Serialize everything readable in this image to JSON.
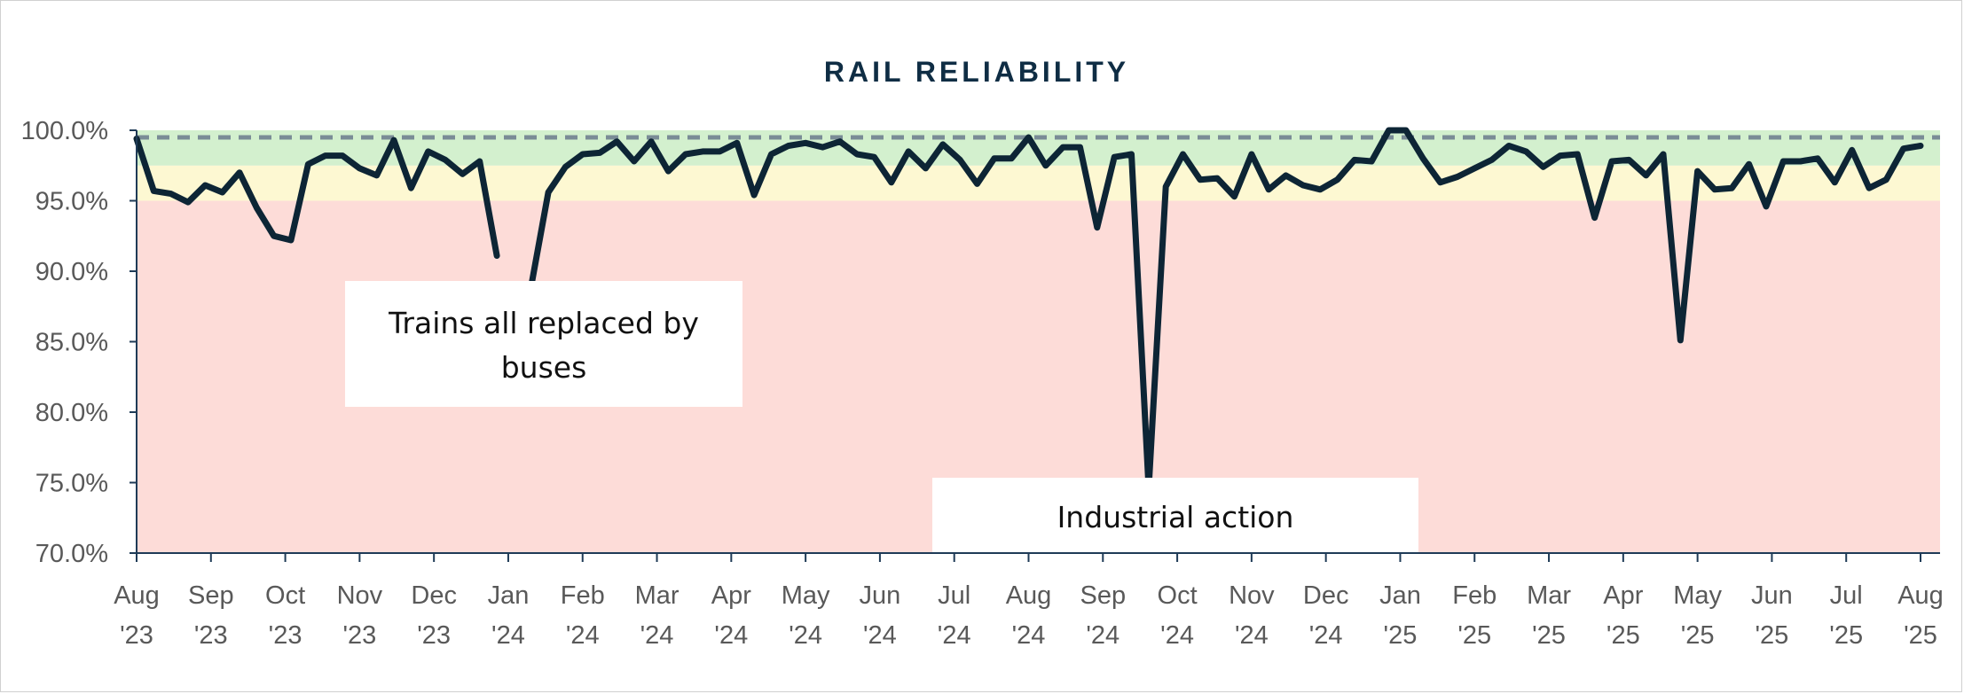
{
  "chart_data": {
    "type": "line",
    "title": "RAIL RELIABILITY",
    "xlabel": "",
    "ylabel": "",
    "ylim": [
      0.7,
      1.0
    ],
    "y_ticks": [
      "70.0%",
      "75.0%",
      "80.0%",
      "85.0%",
      "90.0%",
      "95.0%",
      "100.0%"
    ],
    "y_tick_values": [
      0.7,
      0.75,
      0.8,
      0.85,
      0.9,
      0.95,
      1.0
    ],
    "x_ticks": [
      {
        "month": "Aug",
        "year": "'23"
      },
      {
        "month": "Sep",
        "year": "'23"
      },
      {
        "month": "Oct",
        "year": "'23"
      },
      {
        "month": "Nov",
        "year": "'23"
      },
      {
        "month": "Dec",
        "year": "'23"
      },
      {
        "month": "Jan",
        "year": "'24"
      },
      {
        "month": "Feb",
        "year": "'24"
      },
      {
        "month": "Mar",
        "year": "'24"
      },
      {
        "month": "Apr",
        "year": "'24"
      },
      {
        "month": "May",
        "year": "'24"
      },
      {
        "month": "Jun",
        "year": "'24"
      },
      {
        "month": "Jul",
        "year": "'24"
      },
      {
        "month": "Aug",
        "year": "'24"
      },
      {
        "month": "Sep",
        "year": "'24"
      },
      {
        "month": "Oct",
        "year": "'24"
      },
      {
        "month": "Nov",
        "year": "'24"
      },
      {
        "month": "Dec",
        "year": "'24"
      },
      {
        "month": "Jan",
        "year": "'25"
      },
      {
        "month": "Feb",
        "year": "'25"
      },
      {
        "month": "Mar",
        "year": "'25"
      },
      {
        "month": "Apr",
        "year": "'25"
      },
      {
        "month": "May",
        "year": "'25"
      },
      {
        "month": "Jun",
        "year": "'25"
      },
      {
        "month": "Jul",
        "year": "'25"
      },
      {
        "month": "Aug",
        "year": "'25"
      }
    ],
    "bands": [
      {
        "from": 0.7,
        "to": 0.95,
        "color": "#fddcd8"
      },
      {
        "from": 0.95,
        "to": 0.975,
        "color": "#fdf8d2"
      },
      {
        "from": 0.975,
        "to": 1.0,
        "color": "#d3f0ce"
      }
    ],
    "target_line": {
      "value": 0.995,
      "color": "#7a8c96",
      "style": "dashed"
    },
    "series": [
      {
        "color": "#0d2535",
        "values": [
          0.994,
          0.957,
          0.955,
          0.949,
          0.961,
          0.956,
          0.97,
          0.945,
          0.925,
          0.922,
          0.976,
          0.982,
          0.982,
          0.973,
          0.968,
          0.993,
          0.959,
          0.985,
          0.979,
          0.969,
          0.978,
          0.911,
          null,
          0.889,
          0.956,
          0.974,
          0.983,
          0.984,
          0.992,
          0.978,
          0.992,
          0.971,
          0.983,
          0.985,
          0.985,
          0.991,
          0.954,
          0.983,
          0.989,
          0.991,
          0.988,
          0.992,
          0.983,
          0.981,
          0.963,
          0.985,
          0.973,
          0.99,
          0.979,
          0.962,
          0.98,
          0.98,
          0.995,
          0.975,
          0.988,
          0.988,
          0.931,
          0.981,
          0.983,
          0.746,
          0.96,
          0.983,
          0.965,
          0.966,
          0.953,
          0.983,
          0.958,
          0.968,
          0.961,
          0.958,
          0.965,
          0.979,
          0.978,
          1.0,
          1.0,
          0.98,
          0.963,
          0.967,
          0.973,
          0.979,
          0.989,
          0.985,
          0.974,
          0.982,
          0.983,
          0.938,
          0.978,
          0.979,
          0.968,
          0.983,
          0.851,
          0.971,
          0.958,
          0.959,
          0.976,
          0.946,
          0.978,
          0.978,
          0.98,
          0.963,
          0.986,
          0.959,
          0.965,
          0.987,
          0.989
        ]
      }
    ],
    "annotations": [
      {
        "lines": [
          "Trains all replaced by",
          "buses"
        ]
      },
      {
        "lines": [
          "Industrial action"
        ]
      }
    ]
  }
}
